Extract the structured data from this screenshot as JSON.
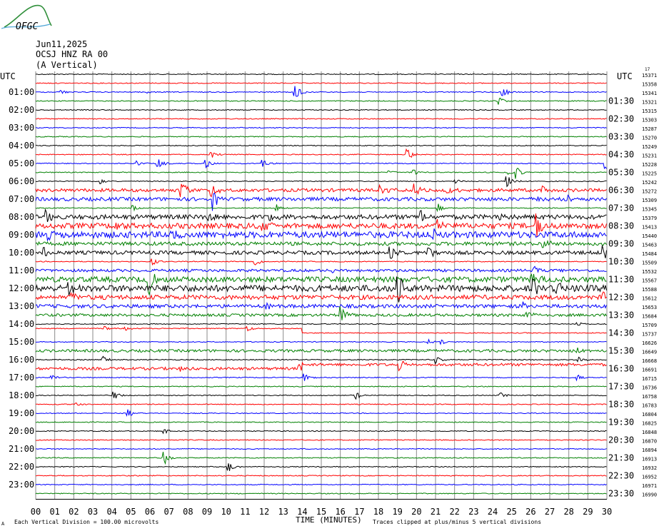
{
  "logo": {
    "text": "OFGC"
  },
  "header": {
    "date": "Jun11,2025",
    "station": "OCSJ HNZ RA 00",
    "component": "(A Vertical)"
  },
  "axes": {
    "left_title": "UTC",
    "right_title": "UTC",
    "xlabel": "TIME (MINUTES)"
  },
  "footer": {
    "scale_note": "Each Vertical Division =  100.00 microvolts",
    "clip_note": "Traces clipped at plus/minus 5 vertical divisions"
  },
  "chart_data": {
    "type": "helicorder",
    "title": "",
    "xlabel": "TIME (MINUTES)",
    "x_ticks": [
      "00",
      "01",
      "02",
      "03",
      "04",
      "05",
      "06",
      "07",
      "08",
      "09",
      "10",
      "11",
      "12",
      "13",
      "14",
      "15",
      "16",
      "17",
      "18",
      "19",
      "20",
      "21",
      "22",
      "23",
      "24",
      "25",
      "26",
      "27",
      "28",
      "29",
      "30"
    ],
    "xlim": [
      0,
      30
    ],
    "minutes_per_line": 30,
    "grid": true,
    "trace_colors": [
      "#000000",
      "#ff0000",
      "#0000ff",
      "#008000"
    ],
    "left_labels": [
      "",
      "01:00",
      "02:00",
      "03:00",
      "04:00",
      "05:00",
      "06:00",
      "07:00",
      "08:00",
      "09:00",
      "10:00",
      "11:00",
      "12:00",
      "13:00",
      "14:00",
      "15:00",
      "16:00",
      "17:00",
      "18:00",
      "19:00",
      "20:00",
      "21:00",
      "22:00",
      "23:00"
    ],
    "right_labels": [
      "",
      "01:30",
      "02:30",
      "03:30",
      "04:30",
      "05:30",
      "06:30",
      "07:30",
      "08:30",
      "09:30",
      "10:30",
      "11:30",
      "12:30",
      "13:30",
      "14:30",
      "15:30",
      "16:30",
      "17:30",
      "18:30",
      "19:30",
      "20:30",
      "21:30",
      "22:30",
      "23:30"
    ],
    "right_counts": [
      "15371",
      "15358",
      "15341",
      "15321",
      "15315",
      "15303",
      "15287",
      "15270",
      "15249",
      "15231",
      "15228",
      "15225",
      "15242",
      "15272",
      "15309",
      "15345",
      "15379",
      "15413",
      "15440",
      "15463",
      "15484",
      "15509",
      "15532",
      "15567",
      "15588",
      "15612",
      "15653",
      "15684",
      "15709",
      "15737",
      "16626",
      "16649",
      "16668",
      "16691",
      "16715",
      "16736",
      "16758",
      "16783",
      "16804",
      "16825",
      "16848",
      "16870",
      "16894",
      "16913",
      "16932",
      "16952",
      "16971",
      "16990"
    ],
    "top_count_prefix": "17",
    "events": [
      {
        "line": 2,
        "minute": 1.3,
        "amp": 0.25
      },
      {
        "line": 2,
        "minute": 5.8,
        "amp": 0.15
      },
      {
        "line": 2,
        "minute": 13.6,
        "amp": 0.9
      },
      {
        "line": 2,
        "minute": 24.5,
        "amp": 0.6
      },
      {
        "line": 3,
        "minute": 24.3,
        "amp": 0.6
      },
      {
        "line": 9,
        "minute": 19.5,
        "amp": 0.7
      },
      {
        "line": 9,
        "minute": 9.2,
        "amp": 0.4
      },
      {
        "line": 10,
        "minute": 5.3,
        "amp": 0.3
      },
      {
        "line": 10,
        "minute": 6.4,
        "amp": 0.6
      },
      {
        "line": 10,
        "minute": 8.9,
        "amp": 0.7
      },
      {
        "line": 10,
        "minute": 11.9,
        "amp": 0.5
      },
      {
        "line": 10,
        "minute": 29.9,
        "amp": 0.8
      },
      {
        "line": 11,
        "minute": 18.5,
        "amp": 0.25
      },
      {
        "line": 11,
        "minute": 19.8,
        "amp": 0.4
      },
      {
        "line": 11,
        "minute": 24.8,
        "amp": 0.4
      },
      {
        "line": 11,
        "minute": 25.2,
        "amp": 0.8
      },
      {
        "line": 12,
        "minute": 3.4,
        "amp": 0.3
      },
      {
        "line": 12,
        "minute": 24.7,
        "amp": 0.9
      },
      {
        "line": 12,
        "minute": 22.0,
        "amp": 0.3
      },
      {
        "line": 13,
        "minute": 7.6,
        "amp": 1.2
      },
      {
        "line": 13,
        "minute": 9.2,
        "amp": 0.9
      },
      {
        "line": 13,
        "minute": 18.1,
        "amp": 0.6
      },
      {
        "line": 13,
        "minute": 19.9,
        "amp": 0.7
      },
      {
        "line": 13,
        "minute": 21.6,
        "amp": 0.6
      },
      {
        "line": 13,
        "minute": 26.6,
        "amp": 0.4
      },
      {
        "line": 14,
        "minute": 9.3,
        "amp": 1.4
      },
      {
        "line": 14,
        "minute": 26.4,
        "amp": 0.4
      },
      {
        "line": 14,
        "minute": 28.0,
        "amp": 0.5
      },
      {
        "line": 15,
        "minute": 5.1,
        "amp": 0.4
      },
      {
        "line": 15,
        "minute": 12.6,
        "amp": 0.6
      },
      {
        "line": 15,
        "minute": 21.1,
        "amp": 0.6
      },
      {
        "line": 16,
        "minute": 0.5,
        "amp": 1.0
      },
      {
        "line": 16,
        "minute": 9.1,
        "amp": 0.5
      },
      {
        "line": 16,
        "minute": 12.3,
        "amp": 0.6
      },
      {
        "line": 16,
        "minute": 20.2,
        "amp": 1.0
      },
      {
        "line": 16,
        "minute": 24.4,
        "amp": 0.4
      },
      {
        "line": 17,
        "minute": 4.2,
        "amp": 0.5
      },
      {
        "line": 17,
        "minute": 11.9,
        "amp": 0.6
      },
      {
        "line": 17,
        "minute": 21.1,
        "amp": 0.6
      },
      {
        "line": 17,
        "minute": 26.3,
        "amp": 1.5
      },
      {
        "line": 17,
        "minute": 27.0,
        "amp": 0.4
      },
      {
        "line": 18,
        "minute": 0.6,
        "amp": 0.6
      },
      {
        "line": 18,
        "minute": 7.0,
        "amp": 0.5
      },
      {
        "line": 18,
        "minute": 20.9,
        "amp": 0.7
      },
      {
        "line": 19,
        "minute": 26.6,
        "amp": 0.8
      },
      {
        "line": 20,
        "minute": 0.4,
        "amp": 0.9
      },
      {
        "line": 20,
        "minute": 18.6,
        "amp": 1.0
      },
      {
        "line": 20,
        "minute": 20.6,
        "amp": 0.8
      },
      {
        "line": 20,
        "minute": 29.8,
        "amp": 1.0
      },
      {
        "line": 21,
        "minute": 6.1,
        "amp": 0.5
      },
      {
        "line": 21,
        "minute": 11.5,
        "amp": 0.5
      },
      {
        "line": 22,
        "minute": 15.6,
        "amp": 0.3
      },
      {
        "line": 22,
        "minute": 26.2,
        "amp": 0.5
      },
      {
        "line": 23,
        "minute": 5.9,
        "amp": 2.0
      },
      {
        "line": 23,
        "minute": 26.0,
        "amp": 0.7
      },
      {
        "line": 24,
        "minute": 1.7,
        "amp": 0.9
      },
      {
        "line": 24,
        "minute": 19.0,
        "amp": 2.2
      },
      {
        "line": 24,
        "minute": 26.1,
        "amp": 1.0
      },
      {
        "line": 24,
        "minute": 27.3,
        "amp": 0.9
      },
      {
        "line": 25,
        "minute": 1.8,
        "amp": 0.4
      },
      {
        "line": 25,
        "minute": 29.8,
        "amp": 0.5
      },
      {
        "line": 26,
        "minute": 12.1,
        "amp": 0.5
      },
      {
        "line": 26,
        "minute": 25.6,
        "amp": 0.4
      },
      {
        "line": 27,
        "minute": 16.0,
        "amp": 1.0
      },
      {
        "line": 27,
        "minute": 25.8,
        "amp": 0.4
      },
      {
        "line": 28,
        "minute": 28.4,
        "amp": 0.3
      },
      {
        "line": 29,
        "minute": 3.6,
        "amp": 0.3
      },
      {
        "line": 29,
        "minute": 4.7,
        "amp": 0.3
      },
      {
        "line": 29,
        "minute": 11.1,
        "amp": 0.3
      },
      {
        "line": 30,
        "minute": 20.6,
        "amp": 0.3
      },
      {
        "line": 30,
        "minute": 21.3,
        "amp": 0.3
      },
      {
        "line": 31,
        "minute": 28.4,
        "amp": 0.4
      },
      {
        "line": 32,
        "minute": 3.5,
        "amp": 0.4
      },
      {
        "line": 32,
        "minute": 21.0,
        "amp": 0.5
      },
      {
        "line": 32,
        "minute": 28.5,
        "amp": 0.4
      },
      {
        "line": 33,
        "minute": 7.6,
        "amp": 0.3
      },
      {
        "line": 33,
        "minute": 13.8,
        "amp": 0.4
      },
      {
        "line": 33,
        "minute": 19.1,
        "amp": 0.6
      },
      {
        "line": 34,
        "minute": 0.8,
        "amp": 0.3
      },
      {
        "line": 34,
        "minute": 14.1,
        "amp": 0.5
      },
      {
        "line": 34,
        "minute": 28.4,
        "amp": 0.4
      },
      {
        "line": 36,
        "minute": 4.1,
        "amp": 0.5
      },
      {
        "line": 36,
        "minute": 16.8,
        "amp": 0.5
      },
      {
        "line": 36,
        "minute": 24.4,
        "amp": 0.4
      },
      {
        "line": 37,
        "minute": 2.1,
        "amp": 0.2
      },
      {
        "line": 38,
        "minute": 4.8,
        "amp": 0.5
      },
      {
        "line": 40,
        "minute": 6.7,
        "amp": 0.3
      },
      {
        "line": 43,
        "minute": 6.7,
        "amp": 0.9
      },
      {
        "line": 44,
        "minute": 10.1,
        "amp": 0.7
      }
    ],
    "noisy_lines": [
      {
        "line": 13,
        "level": 0.18
      },
      {
        "line": 14,
        "level": 0.2
      },
      {
        "line": 16,
        "level": 0.25
      },
      {
        "line": 17,
        "level": 0.3
      },
      {
        "line": 18,
        "level": 0.35
      },
      {
        "line": 19,
        "level": 0.2
      },
      {
        "line": 20,
        "level": 0.2
      },
      {
        "line": 22,
        "level": 0.15
      },
      {
        "line": 23,
        "level": 0.3
      },
      {
        "line": 24,
        "level": 0.35
      },
      {
        "line": 25,
        "level": 0.25
      },
      {
        "line": 26,
        "level": 0.2
      },
      {
        "line": 27,
        "level": 0.15
      },
      {
        "line": 31,
        "level": 0.15
      },
      {
        "line": 33,
        "level": 0.15
      }
    ],
    "offset_lines": [
      {
        "line": 29,
        "from_minute": 0,
        "to_minute": 14.0,
        "shift": -0.5
      },
      {
        "line": 33,
        "from_minute": 14.0,
        "to_minute": 30,
        "shift": -0.45
      }
    ]
  }
}
